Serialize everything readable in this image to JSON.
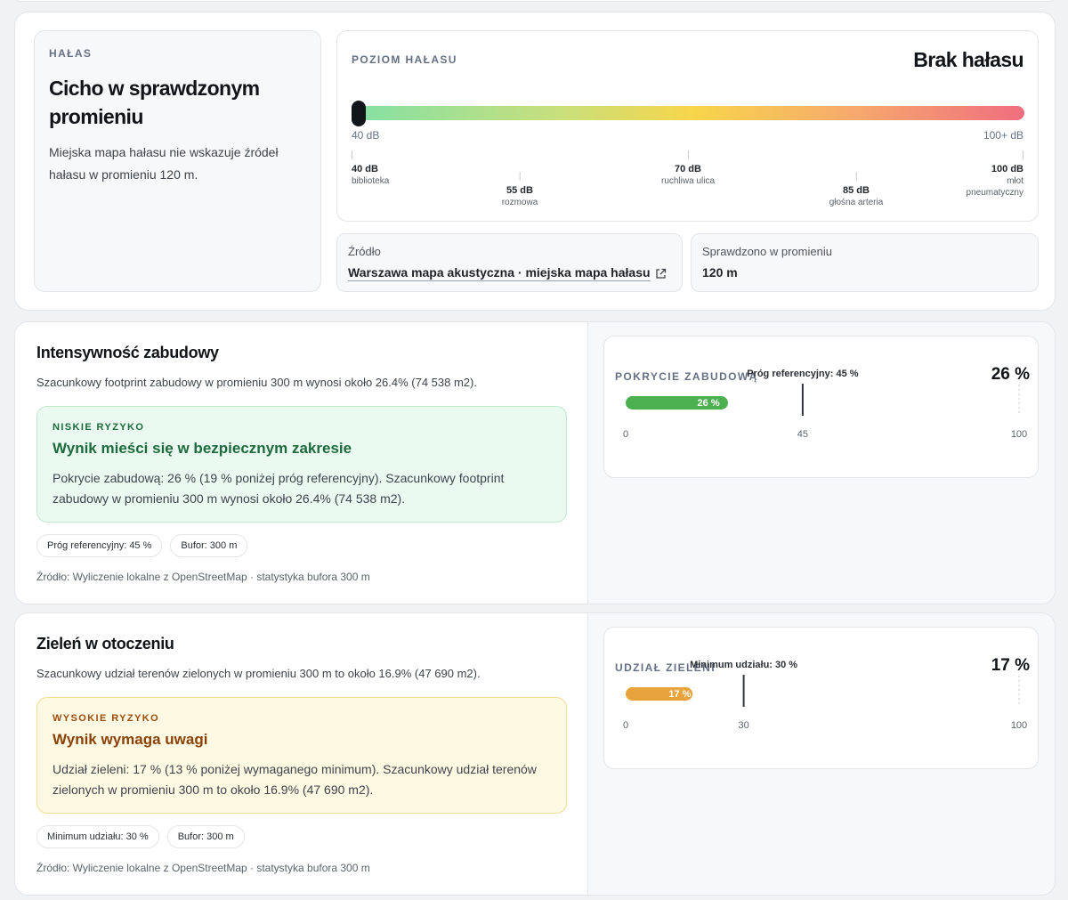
{
  "noise": {
    "eyebrow": "HAŁAS",
    "title": "Cicho w sprawdzonym promieniu",
    "description": "Miejska mapa hałasu nie wskazuje źródeł hałasu w promieniu 120 m.",
    "level_label": "POZIOM HAŁASU",
    "level_value": "Brak hałasu",
    "scale_min": "40 dB",
    "scale_max": "100+ dB",
    "marker_fraction": 0,
    "references": [
      {
        "db": "40 dB",
        "name": "biblioteka"
      },
      {
        "db": "55 dB",
        "name": "rozmowa"
      },
      {
        "db": "70 dB",
        "name": "ruchliwa ulica"
      },
      {
        "db": "85 dB",
        "name": "głośna arteria"
      },
      {
        "db": "100 dB",
        "name": "młot pneumatyczny"
      }
    ],
    "source_label": "Źródło",
    "source_link": "Warszawa mapa akustyczna · miejska mapa hałasu",
    "source_icon": "external-link-icon",
    "radius_label": "Sprawdzono w promieniu",
    "radius_value": "120 m"
  },
  "building": {
    "title": "Intensywność zabudowy",
    "description": "Szacunkowy footprint zabudowy w promieniu 300 m wynosi około 26.4% (74 538 m2).",
    "risk_eyebrow": "NISKIE RYZYKO",
    "risk_title": "Wynik mieści się w bezpiecznym zakresie",
    "risk_text": "Pokrycie zabudową: 26 % (19 % poniżej próg referencyjny). Szacunkowy footprint zabudowy w promieniu 300 m wynosi około 26.4% (74 538 m2).",
    "chip_threshold": "Próg referencyjny: 45 %",
    "chip_buffer": "Bufor: 300 m",
    "source": "Źródło: Wyliczenie lokalne z OpenStreetMap · statystyka bufora 300 m",
    "chart_label": "POKRYCIE ZABUDOWĄ",
    "chart_value": "26 %",
    "bar_color": "#4caf50",
    "threshold_color": "#2f3542"
  },
  "green": {
    "title": "Zieleń w otoczeniu",
    "description": "Szacunkowy udział terenów zielonych w promieniu 300 m to około 16.9% (47 690 m2).",
    "risk_eyebrow": "WYSOKIE RYZYKO",
    "risk_title": "Wynik wymaga uwagi",
    "risk_text": "Udział zieleni: 17 % (13 % poniżej wymaganego minimum). Szacunkowy udział terenów zielonych w promieniu 300 m to około 16.9% (47 690 m2).",
    "chip_threshold": "Minimum udziału: 30 %",
    "chip_buffer": "Bufor: 300 m",
    "source": "Źródło: Wyliczenie lokalne z OpenStreetMap · statystyka bufora 300 m",
    "chart_label": "UDZIAŁ ZIELENI",
    "chart_value": "17 %",
    "bar_color": "#e8a33c",
    "threshold_color": "#2f3542"
  },
  "chart_data": [
    {
      "type": "bar",
      "categories": [
        "Pokrycie zabudową"
      ],
      "values": [
        26
      ],
      "value_label": "26 %",
      "threshold": 45,
      "threshold_label": "Próg referencyjny: 45 %",
      "xlim": [
        0,
        100
      ],
      "tick_labels": [
        "0",
        "45",
        "100"
      ]
    },
    {
      "type": "bar",
      "categories": [
        "Udział zieleni"
      ],
      "values": [
        17
      ],
      "value_label": "17 %",
      "threshold": 30,
      "threshold_label": "Minimum udziału: 30 %",
      "xlim": [
        0,
        100
      ],
      "tick_labels": [
        "0",
        "30",
        "100"
      ]
    }
  ]
}
